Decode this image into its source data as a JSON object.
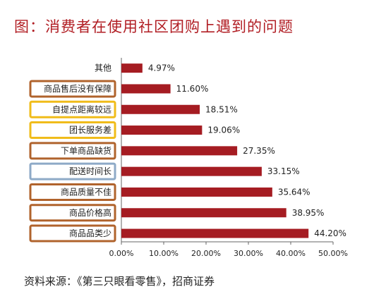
{
  "title": "图：消费者在使用社区团购上遇到的问题",
  "source": "资料来源：《第三只眼看零售》，招商证券",
  "chart_data": {
    "type": "bar",
    "orientation": "horizontal",
    "categories": [
      "其他",
      "商品售后没有保障",
      "自提点距离较远",
      "团长服务差",
      "下单商品缺货",
      "配送时间长",
      "商品质量不佳",
      "商品价格高",
      "商品品类少"
    ],
    "values": [
      4.97,
      11.6,
      18.51,
      19.06,
      27.35,
      33.15,
      35.64,
      38.95,
      44.2
    ],
    "value_labels": [
      "4.97%",
      "11.60%",
      "18.51%",
      "19.06%",
      "27.35%",
      "33.15%",
      "35.64%",
      "38.95%",
      "44.20%"
    ],
    "xlim": [
      0,
      50
    ],
    "xticks": [
      0,
      10,
      20,
      30,
      40,
      50
    ],
    "xtick_labels": [
      "0.00%",
      "10.00%",
      "20.00%",
      "30.00%",
      "40.00%",
      "50.00%"
    ],
    "bar_color": "#a51c22",
    "box_colors": [
      "",
      "#b0632c",
      "#f0bc1a",
      "#f0bc1a",
      "#b0632c",
      "#8eaac7",
      "#b0632c",
      "#b0632c",
      "#b0632c"
    ],
    "grid": false
  }
}
